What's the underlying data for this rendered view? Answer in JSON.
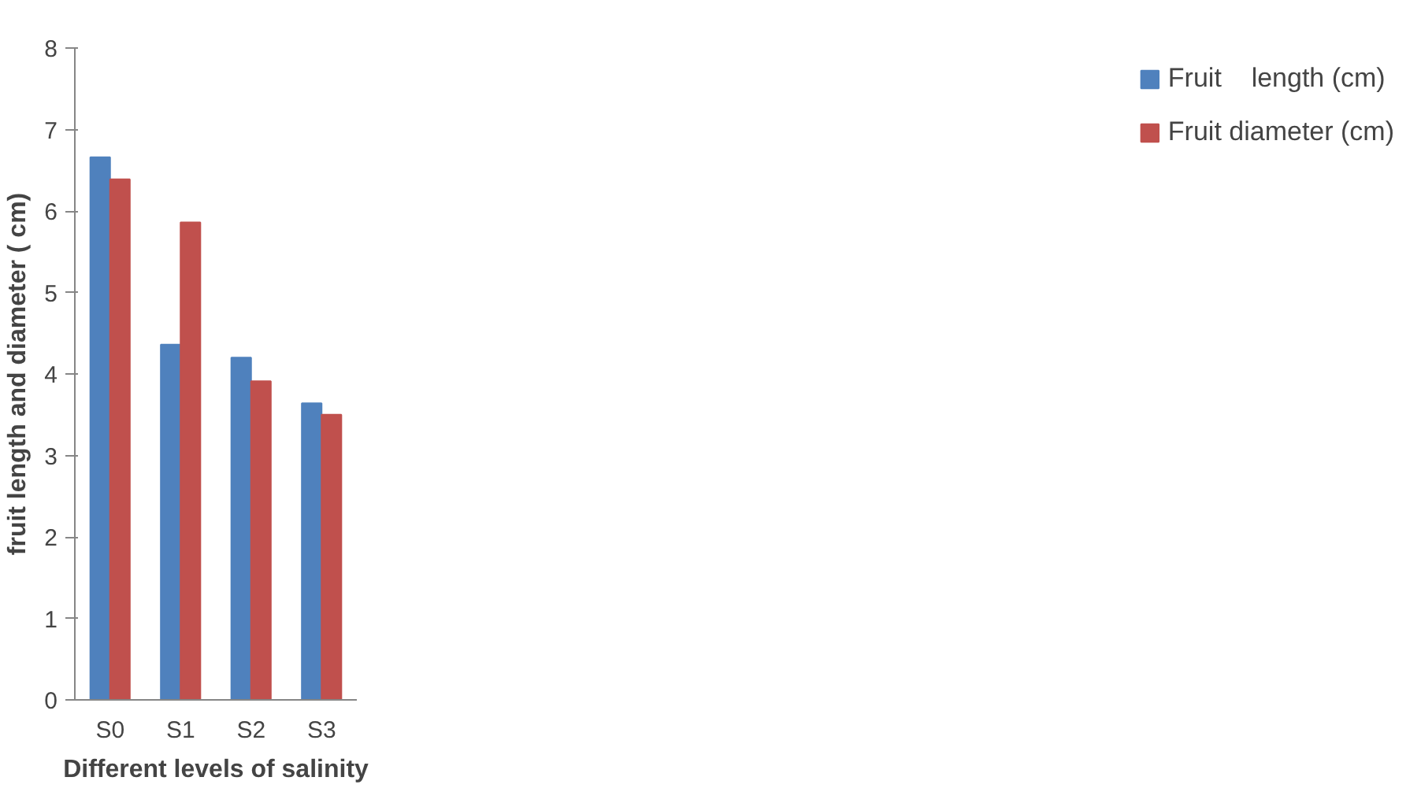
{
  "chart_data": {
    "type": "bar",
    "xlabel": "Different levels of salinity",
    "ylabel": "fruit length and diameter ( cm)",
    "categories": [
      "S0",
      "S1",
      "S2",
      "S3"
    ],
    "series": [
      {
        "name": "Fruit    length (cm)",
        "color": "#4f81bd",
        "values": [
          6.66,
          4.36,
          4.2,
          3.64
        ]
      },
      {
        "name": "Fruit diameter (cm)",
        "color": "#c0504d",
        "values": [
          6.39,
          5.86,
          3.91,
          3.5
        ]
      }
    ],
    "ylim": [
      0,
      8
    ],
    "yticks": [
      0,
      1,
      2,
      3,
      4,
      5,
      6,
      7,
      8
    ],
    "grid": false,
    "legend": "right"
  }
}
